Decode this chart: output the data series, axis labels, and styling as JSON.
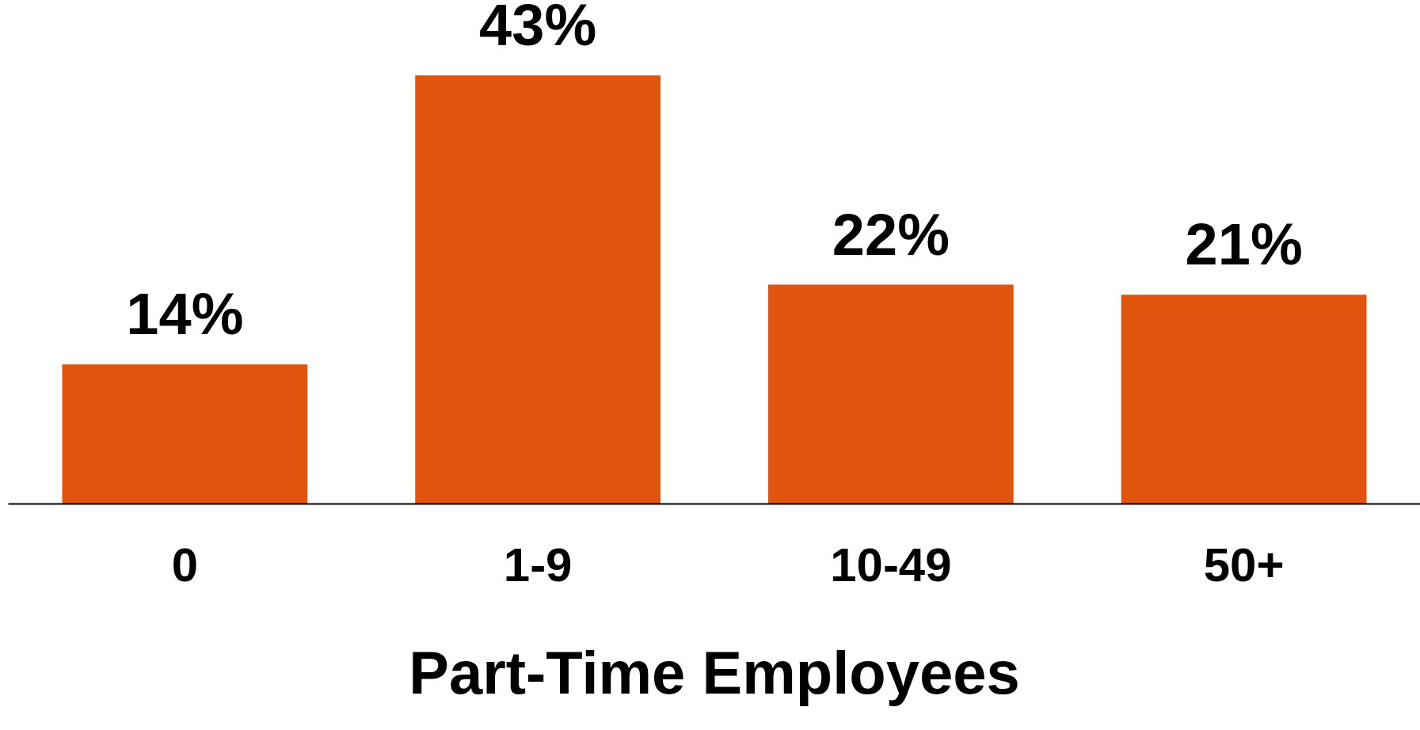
{
  "chart_data": {
    "type": "bar",
    "xlabel": "Part-Time Employees",
    "categories": [
      "0",
      "1-9",
      "10-49",
      "50+"
    ],
    "values": [
      14,
      43,
      22,
      21
    ],
    "color": "#e0540e",
    "value_labels": [
      "14%",
      "43%",
      "22%",
      "21%"
    ]
  }
}
